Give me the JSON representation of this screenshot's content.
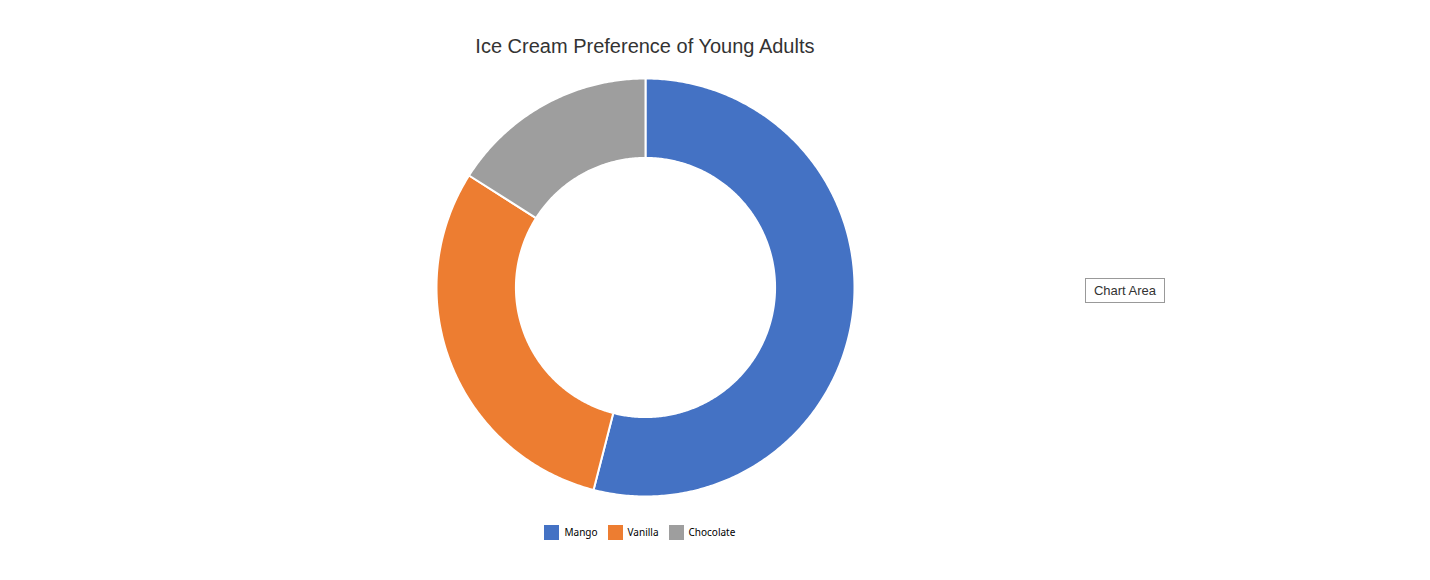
{
  "chart_data": {
    "type": "donut",
    "title": "Ice Cream Preference of Young Adults",
    "categories": [
      "Mango",
      "Vanilla",
      "Chocolate"
    ],
    "values": [
      54,
      30,
      16
    ],
    "colors": [
      "#4472C4",
      "#ED7D31",
      "#9E9E9E"
    ],
    "legend": "bottom",
    "annotations": [
      "Chart Area"
    ]
  }
}
